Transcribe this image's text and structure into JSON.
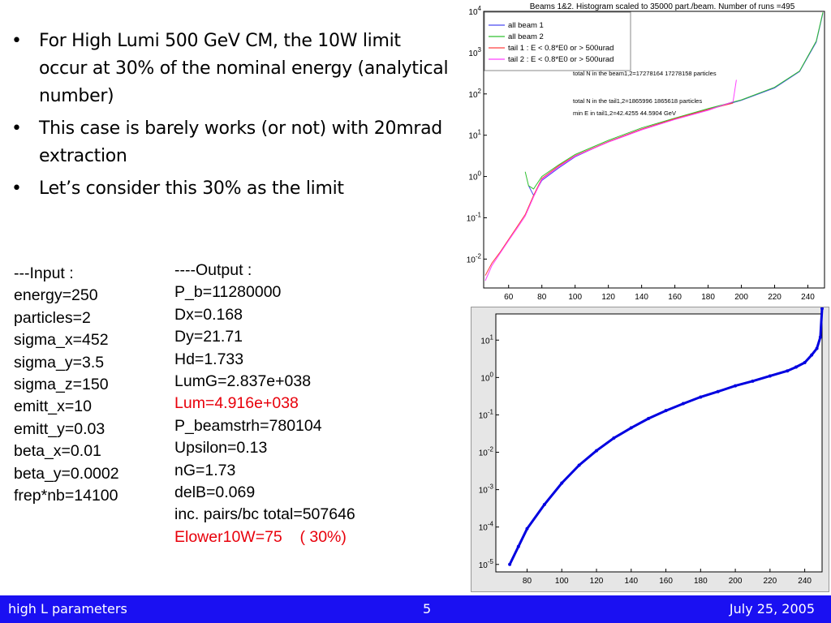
{
  "bullets": [
    "For High Lumi 500 GeV CM, the 10W limit occur at 30% of the nominal energy (analytical number)",
    "This case is barely works (or not) with 20mrad extraction",
    "Let’s consider this 30% as the limit"
  ],
  "input": {
    "header": "---Input :",
    "lines": [
      "energy=250",
      "particles=2",
      "sigma_x=452",
      "sigma_y=3.5",
      "sigma_z=150",
      "emitt_x=10",
      "emitt_y=0.03",
      "beta_x=0.01",
      "beta_y=0.0002",
      "frep*nb=14100"
    ]
  },
  "output": {
    "header": "----Output :",
    "lines": [
      {
        "text": "P_b=11280000",
        "highlight": false
      },
      {
        "text": "Dx=0.168",
        "highlight": false
      },
      {
        "text": "Dy=21.71",
        "highlight": false
      },
      {
        "text": "Hd=1.733",
        "highlight": false
      },
      {
        "text": "LumG=2.837e+038",
        "highlight": false
      },
      {
        "text": "Lum=4.916e+038",
        "highlight": true
      },
      {
        "text": "P_beamstrh=780104",
        "highlight": false
      },
      {
        "text": "Upsilon=0.13",
        "highlight": false
      },
      {
        "text": "nG=1.73",
        "highlight": false
      },
      {
        "text": "delB=0.069",
        "highlight": false
      },
      {
        "text": "inc. pairs/bc total=507646",
        "highlight": false
      },
      {
        "text": "Elower10W=75    ( 30%)",
        "highlight": true
      }
    ]
  },
  "footer": {
    "left": "high L parameters",
    "center": "5",
    "right": "July 25, 2005"
  },
  "colors": {
    "footer_bg": "#1a10f2",
    "highlight": "#e8000b",
    "series_blue": "#0000e0"
  },
  "chart_data": [
    {
      "type": "line",
      "title": "Beams 1&2. Histogram scaled to 35000 part./beam. Number of runs =495",
      "y_scale": "log",
      "xlim": [
        45,
        250
      ],
      "ylim_exp": [
        -2.7,
        4
      ],
      "x_ticks": [
        60,
        80,
        100,
        120,
        140,
        160,
        180,
        200,
        220,
        240
      ],
      "y_tick_labels": [
        "10^-2",
        "10^-1",
        "10^0",
        "10^1",
        "10^2",
        "10^3",
        "10^4"
      ],
      "legend": [
        {
          "label": "all beam 1",
          "color": "#4a4af0"
        },
        {
          "label": "all beam 2",
          "color": "#30c030"
        },
        {
          "label": "tail 1 : E < 0.8*E0 or > 500urad",
          "color": "#ff4040"
        },
        {
          "label": "tail 2 : E < 0.8*E0 or > 500urad",
          "color": "#ff40ff"
        }
      ],
      "annotations": [
        "total N in the beam1,2=17278164 17278158 particles",
        "total N in the tail1,2=1865996 1865618 particles",
        "min E in tail1,2=42.4255 44.5904 GeV"
      ],
      "series": [
        {
          "name": "all beam 1",
          "x": [
            72,
            75,
            80,
            90,
            100,
            120,
            140,
            160,
            180,
            200,
            220,
            235,
            245,
            249
          ],
          "y": [
            0.6,
            0.35,
            0.8,
            1.6,
            3,
            7,
            14,
            25,
            42,
            70,
            140,
            350,
            1800,
            9000
          ]
        },
        {
          "name": "all beam 2",
          "x": [
            70,
            72,
            75,
            80,
            90,
            100,
            120,
            140,
            160,
            180,
            200,
            220,
            235,
            245,
            249
          ],
          "y": [
            1.3,
            0.6,
            0.5,
            1,
            1.9,
            3.4,
            7.5,
            15,
            26,
            44,
            72,
            145,
            360,
            1900,
            9500
          ]
        },
        {
          "name": "tail 1",
          "x": [
            46,
            50,
            55,
            60,
            65,
            70,
            75,
            80,
            90,
            100,
            120,
            140,
            160,
            180,
            195
          ],
          "y": [
            0.004,
            0.008,
            0.015,
            0.03,
            0.06,
            0.12,
            0.35,
            0.9,
            1.8,
            3.2,
            7,
            14,
            25,
            42,
            60
          ]
        },
        {
          "name": "tail 2",
          "x": [
            46,
            50,
            55,
            60,
            65,
            70,
            75,
            80,
            90,
            100,
            120,
            140,
            160,
            180,
            195,
            197
          ],
          "y": [
            0.003,
            0.007,
            0.014,
            0.028,
            0.055,
            0.11,
            0.32,
            0.85,
            1.7,
            3.1,
            6.8,
            13.5,
            24,
            40,
            65,
            220
          ]
        }
      ]
    },
    {
      "type": "scatter",
      "y_scale": "log",
      "xlim": [
        62,
        250
      ],
      "ylim_exp": [
        -5.2,
        1.7
      ],
      "x_ticks": [
        80,
        100,
        120,
        140,
        160,
        180,
        200,
        220,
        240
      ],
      "y_tick_labels": [
        "10^-5",
        "10^-4",
        "10^-3",
        "10^-2",
        "10^-1",
        "10^0",
        "10^1"
      ],
      "series": [
        {
          "x": [
            70,
            75,
            80,
            90,
            100,
            110,
            120,
            130,
            140,
            150,
            160,
            170,
            180,
            190,
            200,
            210,
            220,
            230,
            235,
            240,
            244,
            247,
            249,
            250
          ],
          "y": [
            1e-05,
            3e-05,
            9e-05,
            0.0004,
            0.0015,
            0.0045,
            0.011,
            0.024,
            0.045,
            0.08,
            0.13,
            0.2,
            0.3,
            0.42,
            0.6,
            0.8,
            1.1,
            1.5,
            1.9,
            2.5,
            4,
            6,
            12,
            70
          ]
        }
      ]
    }
  ]
}
